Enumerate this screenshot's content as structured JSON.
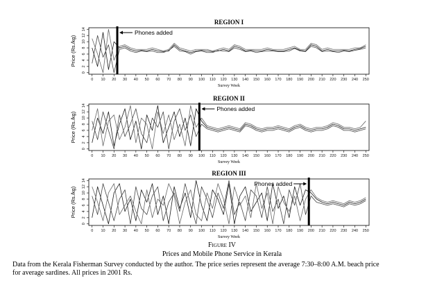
{
  "chart_data": [
    {
      "type": "line",
      "title": "REGION I",
      "xlabel": "Survey Week",
      "ylabel": "Price (Rs./kg)",
      "x": [
        0,
        5,
        10,
        15,
        20,
        25,
        30,
        35,
        40,
        45,
        50,
        55,
        60,
        65,
        70,
        75,
        80,
        85,
        90,
        95,
        100,
        105,
        110,
        115,
        120,
        125,
        130,
        135,
        140,
        145,
        150,
        155,
        160,
        165,
        170,
        175,
        180,
        185,
        190,
        195,
        200,
        205,
        210,
        215,
        220,
        225,
        230,
        235,
        240,
        245,
        250
      ],
      "series": [
        {
          "color": "#1a1a1a",
          "values": [
            8,
            2,
            13,
            1,
            10,
            8,
            8.5,
            7.5,
            7,
            7.2,
            7,
            7.5,
            7,
            6.8,
            7,
            9,
            7.5,
            7,
            6.5,
            7,
            7.2,
            7,
            6.8,
            7,
            7.5,
            7,
            8.5,
            8,
            7,
            7.2,
            7,
            7,
            7.5,
            7.2,
            7,
            7,
            7.5,
            8,
            7.2,
            7,
            9,
            8.5,
            7,
            7.5,
            7,
            7,
            7.2,
            7,
            7.5,
            7.8,
            8.5
          ]
        },
        {
          "color": "#444444",
          "values": [
            3,
            12,
            5,
            9,
            0,
            7.5,
            8,
            7,
            6.5,
            7,
            6.8,
            7,
            6.5,
            6.5,
            7.2,
            8.5,
            7,
            6.8,
            6,
            6.8,
            7,
            6.5,
            6.5,
            7.2,
            7,
            6.8,
            8,
            7.5,
            6.8,
            7,
            6.5,
            6.8,
            7,
            7,
            6.8,
            6.8,
            7,
            7.8,
            7,
            6.8,
            8.5,
            8,
            6.8,
            7,
            6.8,
            6.5,
            7,
            6.8,
            7.2,
            7.5,
            8
          ]
        },
        {
          "color": "#666666",
          "values": [
            11,
            6,
            0,
            14,
            4,
            8.5,
            9,
            8,
            7.5,
            7.5,
            7.5,
            8,
            7.5,
            7,
            7.5,
            9.5,
            8,
            7.5,
            7,
            7.5,
            7.5,
            7.5,
            7,
            7.5,
            8,
            7.5,
            9,
            8.5,
            7.5,
            7.5,
            7.5,
            7.5,
            8,
            7.5,
            7.5,
            7.5,
            8,
            8.5,
            7.5,
            7.5,
            9.5,
            9,
            7.5,
            8,
            7.5,
            7.5,
            7.5,
            7.5,
            8,
            8,
            9
          ]
        }
      ],
      "xlim": [
        -3,
        253
      ],
      "ylim": [
        -0.5,
        14.5
      ],
      "xticks": [
        0,
        10,
        20,
        30,
        40,
        50,
        60,
        70,
        80,
        90,
        100,
        110,
        120,
        130,
        140,
        150,
        160,
        170,
        180,
        190,
        200,
        210,
        220,
        230,
        240,
        250
      ],
      "yticks": [
        0,
        2,
        4,
        6,
        8,
        10,
        12,
        14
      ],
      "phones_added_week": 23,
      "annotation": "Phones added"
    },
    {
      "type": "line",
      "title": "REGION II",
      "xlabel": "Survey Week",
      "ylabel": "Price (Rs./kg)",
      "x": [
        0,
        5,
        10,
        15,
        20,
        25,
        30,
        35,
        40,
        45,
        50,
        55,
        60,
        65,
        70,
        75,
        80,
        85,
        90,
        95,
        100,
        105,
        110,
        115,
        120,
        125,
        130,
        135,
        140,
        145,
        150,
        155,
        160,
        165,
        170,
        175,
        180,
        185,
        190,
        195,
        200,
        205,
        210,
        215,
        220,
        225,
        230,
        235,
        240,
        245,
        250
      ],
      "series": [
        {
          "color": "#1a1a1a",
          "values": [
            2,
            10,
            5,
            12,
            1,
            8,
            13,
            3,
            9,
            0,
            11,
            6,
            14,
            2,
            7,
            12,
            4,
            10,
            1,
            13,
            9,
            7,
            6.5,
            6,
            6.5,
            7,
            6.5,
            6,
            8,
            7.5,
            6.5,
            6,
            6.5,
            6.5,
            7,
            6.5,
            6,
            7,
            7.5,
            6.5,
            6,
            6.5,
            6.5,
            7,
            8,
            7.5,
            6.5,
            6.5,
            6,
            6.5,
            7
          ]
        },
        {
          "color": "#444444",
          "values": [
            9,
            3,
            12,
            6,
            0,
            11,
            4,
            8,
            13,
            5,
            2,
            10,
            7,
            12,
            0,
            9,
            13,
            6,
            11,
            4,
            8,
            6.5,
            6,
            5.5,
            6,
            6.5,
            6,
            5.5,
            7.5,
            7,
            6,
            5.5,
            6,
            6,
            6.5,
            6,
            5.5,
            6.5,
            7,
            6,
            5.5,
            6,
            6,
            6.5,
            7.5,
            7,
            6,
            6,
            5.5,
            6,
            6.5
          ]
        },
        {
          "color": "#666666",
          "values": [
            6,
            13,
            1,
            9,
            11,
            3,
            7,
            14,
            2,
            10,
            8,
            0,
            12,
            5,
            11,
            3,
            8,
            1,
            14,
            7,
            10,
            7.5,
            7,
            6.5,
            7,
            7.5,
            7,
            6.5,
            8.5,
            8,
            7,
            6.5,
            7,
            7,
            7.5,
            7,
            6.5,
            7.5,
            8,
            7,
            6.5,
            7,
            7,
            7.5,
            8.5,
            8,
            7,
            7,
            6.5,
            7,
            9
          ]
        }
      ],
      "xlim": [
        -3,
        253
      ],
      "ylim": [
        -0.5,
        14.5
      ],
      "xticks": [
        0,
        10,
        20,
        30,
        40,
        50,
        60,
        70,
        80,
        90,
        100,
        110,
        120,
        130,
        140,
        150,
        160,
        170,
        180,
        190,
        200,
        210,
        220,
        230,
        240,
        250
      ],
      "yticks": [
        0,
        2,
        4,
        6,
        8,
        10,
        12,
        14
      ],
      "phones_added_week": 98,
      "annotation": "Phones added"
    },
    {
      "type": "line",
      "title": "REGION III",
      "xlabel": "Survey Week",
      "ylabel": "Price (Rs./kg)",
      "x": [
        0,
        5,
        10,
        15,
        20,
        25,
        30,
        35,
        40,
        45,
        50,
        55,
        60,
        65,
        70,
        75,
        80,
        85,
        90,
        95,
        100,
        105,
        110,
        115,
        120,
        125,
        130,
        135,
        140,
        145,
        150,
        155,
        160,
        165,
        170,
        175,
        180,
        185,
        190,
        195,
        200,
        205,
        210,
        215,
        220,
        225,
        230,
        235,
        240,
        245,
        250
      ],
      "series": [
        {
          "color": "#1a1a1a",
          "values": [
            2,
            12,
            6,
            0,
            10,
            13,
            4,
            8,
            1,
            11,
            7,
            13,
            3,
            9,
            0,
            12,
            5,
            10,
            2,
            14,
            6,
            1,
            11,
            8,
            3,
            13,
            0,
            9,
            12,
            4,
            7,
            10,
            1,
            13,
            5,
            9,
            2,
            12,
            6,
            11,
            10,
            8,
            7,
            6.5,
            7,
            6.5,
            6,
            7,
            6.5,
            7,
            8
          ]
        },
        {
          "color": "#444444",
          "values": [
            9,
            3,
            13,
            7,
            1,
            8,
            11,
            0,
            12,
            5,
            3,
            9,
            12,
            1,
            7,
            10,
            4,
            13,
            6,
            0,
            12,
            8,
            2,
            10,
            5,
            14,
            3,
            7,
            1,
            11,
            9,
            2,
            12,
            4,
            8,
            0,
            11,
            6,
            13,
            3,
            9,
            7,
            6.5,
            6,
            6.5,
            6,
            5.5,
            6.5,
            6,
            6.5,
            7.5
          ]
        },
        {
          "color": "#666666",
          "values": [
            12,
            7,
            1,
            10,
            13,
            3,
            6,
            9,
            4,
            0,
            11,
            2,
            8,
            6,
            13,
            9,
            0,
            7,
            11,
            3,
            1,
            10,
            5,
            13,
            8,
            0,
            12,
            6,
            9,
            2,
            13,
            5,
            10,
            0,
            12,
            7,
            4,
            9,
            1,
            8,
            11,
            8.5,
            7.5,
            7,
            7.5,
            7,
            6.5,
            7.5,
            7,
            7.5,
            8.5
          ]
        }
      ],
      "xlim": [
        -3,
        253
      ],
      "ylim": [
        -0.5,
        14.5
      ],
      "xticks": [
        0,
        10,
        20,
        30,
        40,
        50,
        60,
        70,
        80,
        90,
        100,
        110,
        120,
        130,
        140,
        150,
        160,
        170,
        180,
        190,
        200,
        210,
        220,
        230,
        240,
        250
      ],
      "yticks": [
        0,
        2,
        4,
        6,
        8,
        10,
        12,
        14
      ],
      "phones_added_week": 198,
      "annotation": "Phones added"
    }
  ],
  "figure": {
    "label": "Figure IV",
    "title": "Prices and Mobile Phone Service in Kerala",
    "note": [
      "Data from the Kerala Fisherman Survey conducted by the author. The price series represent the average 7:30–8:00 A.M. beach price",
      "for average sardines. All prices in 2001 Rs."
    ]
  }
}
